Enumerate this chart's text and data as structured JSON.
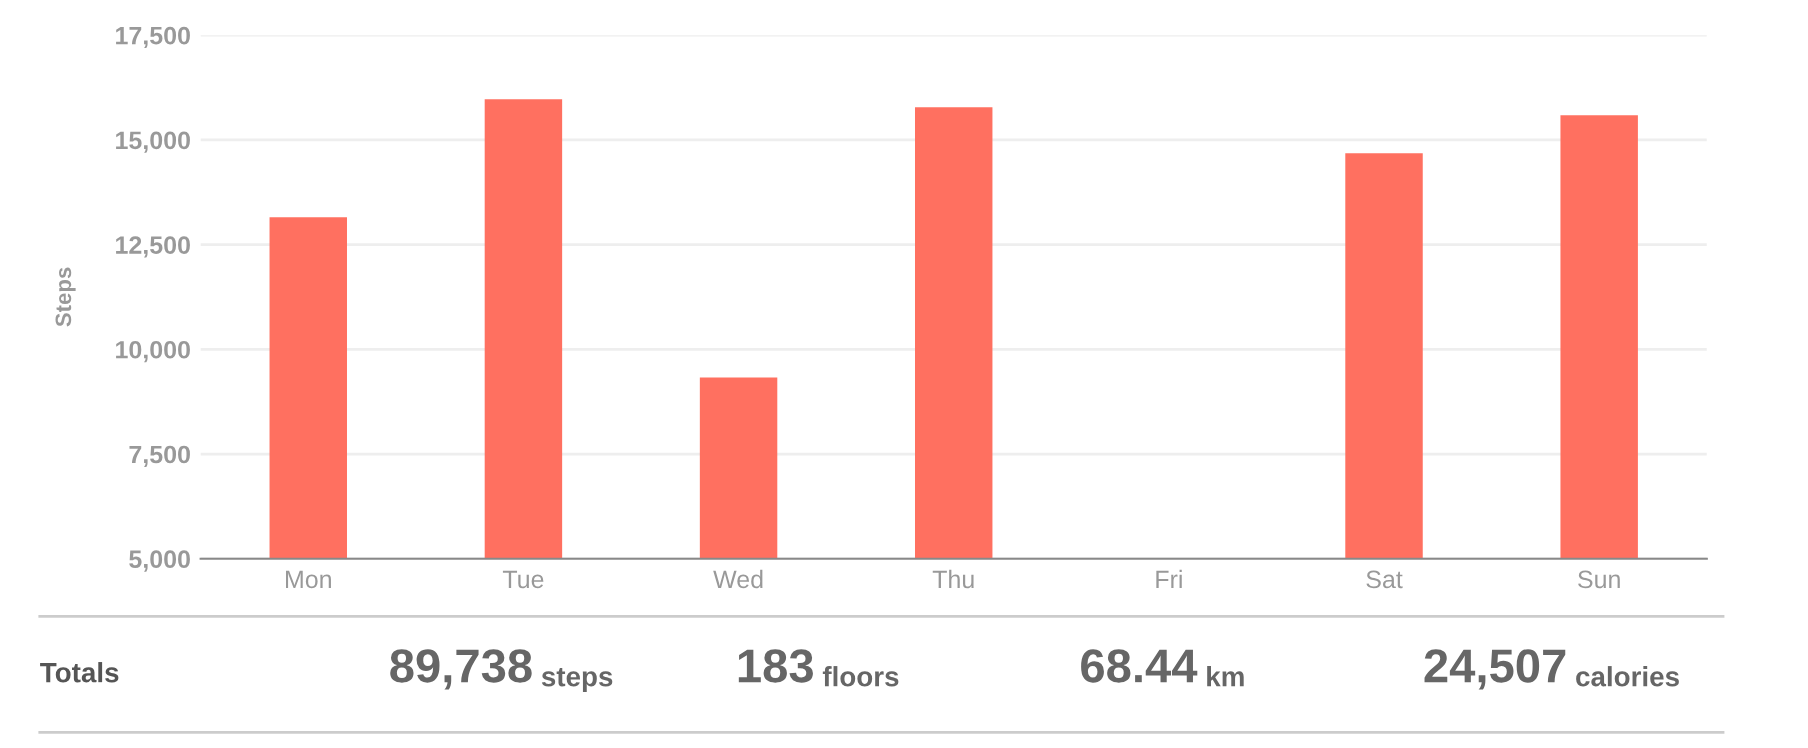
{
  "chart_data": {
    "type": "bar",
    "ylabel": "Steps",
    "categories": [
      "Mon",
      "Tue",
      "Wed",
      "Thu",
      "Fri",
      "Sat",
      "Sun"
    ],
    "values": [
      13150,
      15970,
      9330,
      15780,
      null,
      14680,
      15590
    ],
    "color": "#ff7060",
    "ylim": [
      5000,
      17500
    ],
    "yticks": [
      {
        "value": 5000,
        "label": "5,000"
      },
      {
        "value": 7500,
        "label": "7,500"
      },
      {
        "value": 10000,
        "label": "10,000"
      },
      {
        "value": 12500,
        "label": "12,500"
      },
      {
        "value": 15000,
        "label": "15,000"
      },
      {
        "value": 17500,
        "label": "17,500"
      }
    ],
    "grid": "y",
    "annotations": [
      "Totals",
      "89,738 steps",
      "183 floors",
      "68.44 km",
      "24,507 calories"
    ]
  }
}
